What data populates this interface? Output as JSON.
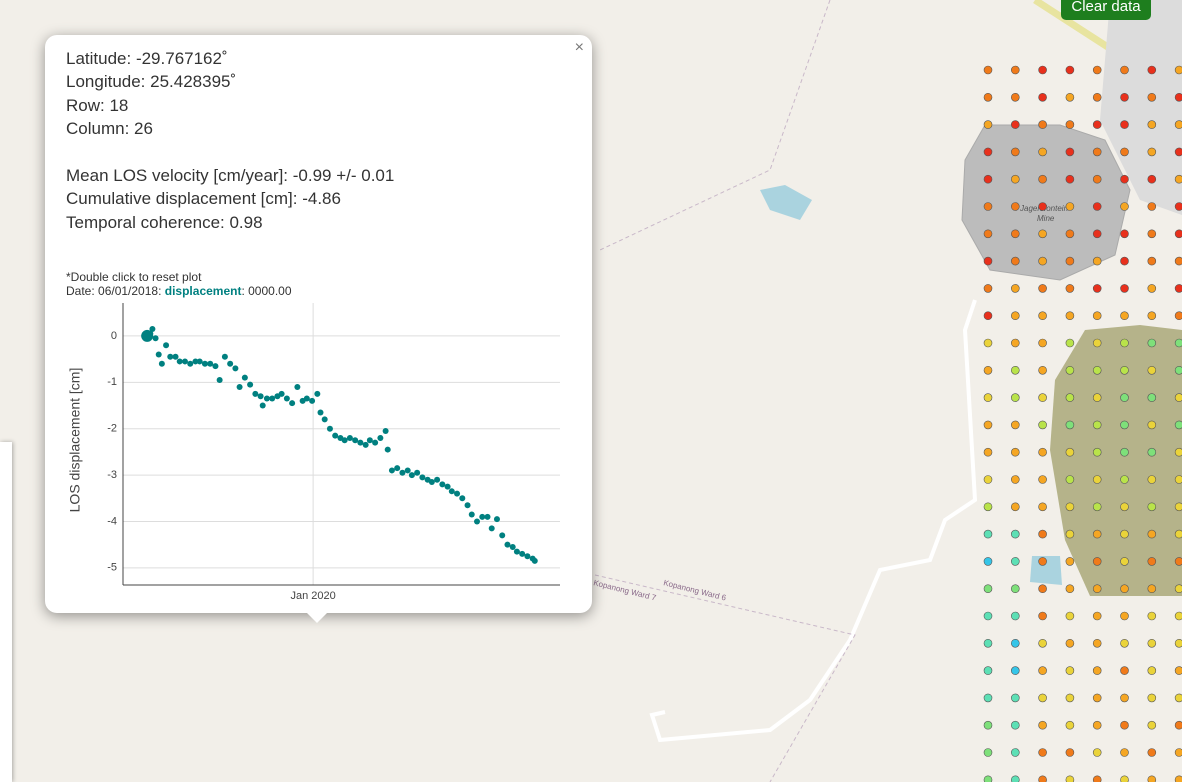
{
  "map": {
    "button": "Clear data",
    "labels": [
      "Kopanong Ward 7",
      "Kopanong Ward 6",
      "Jagersfontein",
      "Mine"
    ]
  },
  "popup": {
    "close": "×",
    "lines": [
      "Latitude: -29.767162˚",
      "Longitude: 25.428395˚",
      "Row: 18",
      "Column: 26"
    ],
    "stats": [
      "Mean LOS velocity [cm/year]: -0.99 +/- 0.01",
      "Cumulative displacement [cm]: -4.86",
      "Temporal coherence: 0.98"
    ],
    "note": "*Double click to reset plot",
    "date": "Date: 06/01/2018:",
    "field": "displacement",
    "field_value": ":  0000.00"
  },
  "chart_data": {
    "type": "scatter",
    "color": "#008080",
    "ylabel": "LOS displacement [cm]",
    "grid": true,
    "xlim": [
      2018.19,
      2022.35
    ],
    "xticks": [
      {
        "value": 2020,
        "label": "Jan 2020"
      }
    ],
    "ylim": [
      -5.37,
      0.71
    ],
    "yticks": [
      0,
      -1,
      -2,
      -3,
      -4,
      -5
    ],
    "x": [
      2018.42,
      2018.45,
      2018.47,
      2018.5,
      2018.53,
      2018.56,
      2018.6,
      2018.64,
      2018.69,
      2018.73,
      2018.78,
      2018.83,
      2018.88,
      2018.92,
      2018.97,
      2019.02,
      2019.07,
      2019.11,
      2019.16,
      2019.21,
      2019.26,
      2019.3,
      2019.35,
      2019.4,
      2019.45,
      2019.5,
      2019.52,
      2019.56,
      2019.61,
      2019.66,
      2019.7,
      2019.75,
      2019.8,
      2019.85,
      2019.9,
      2019.94,
      2019.99,
      2020.04,
      2020.07,
      2020.11,
      2020.16,
      2020.21,
      2020.26,
      2020.3,
      2020.35,
      2020.4,
      2020.45,
      2020.5,
      2020.54,
      2020.59,
      2020.64,
      2020.69,
      2020.71,
      2020.75,
      2020.8,
      2020.85,
      2020.9,
      2020.94,
      2020.99,
      2021.04,
      2021.09,
      2021.13,
      2021.18,
      2021.23,
      2021.28,
      2021.32,
      2021.37,
      2021.42,
      2021.47,
      2021.51,
      2021.56,
      2021.61,
      2021.66,
      2021.7,
      2021.75,
      2021.8,
      2021.85,
      2021.9,
      2021.94,
      2021.99,
      2022.04,
      2022.09,
      2022.11
    ],
    "values": [
      0.0,
      0.05,
      0.15,
      -0.05,
      -0.4,
      -0.6,
      -0.2,
      -0.45,
      -0.45,
      -0.55,
      -0.55,
      -0.6,
      -0.55,
      -0.55,
      -0.6,
      -0.6,
      -0.65,
      -0.95,
      -0.45,
      -0.6,
      -0.7,
      -1.1,
      -0.9,
      -1.05,
      -1.25,
      -1.3,
      -1.5,
      -1.35,
      -1.35,
      -1.3,
      -1.25,
      -1.35,
      -1.45,
      -1.1,
      -1.4,
      -1.35,
      -1.4,
      -1.25,
      -1.65,
      -1.8,
      -2.0,
      -2.15,
      -2.2,
      -2.25,
      -2.2,
      -2.25,
      -2.3,
      -2.35,
      -2.25,
      -2.3,
      -2.2,
      -2.05,
      -2.45,
      -2.9,
      -2.85,
      -2.95,
      -2.9,
      -3.0,
      -2.95,
      -3.05,
      -3.1,
      -3.15,
      -3.1,
      -3.2,
      -3.25,
      -3.35,
      -3.4,
      -3.5,
      -3.65,
      -3.85,
      -4.0,
      -3.9,
      -3.9,
      -4.15,
      -3.95,
      -4.3,
      -4.5,
      -4.55,
      -4.65,
      -4.7,
      -4.75,
      -4.8,
      -4.85
    ]
  }
}
